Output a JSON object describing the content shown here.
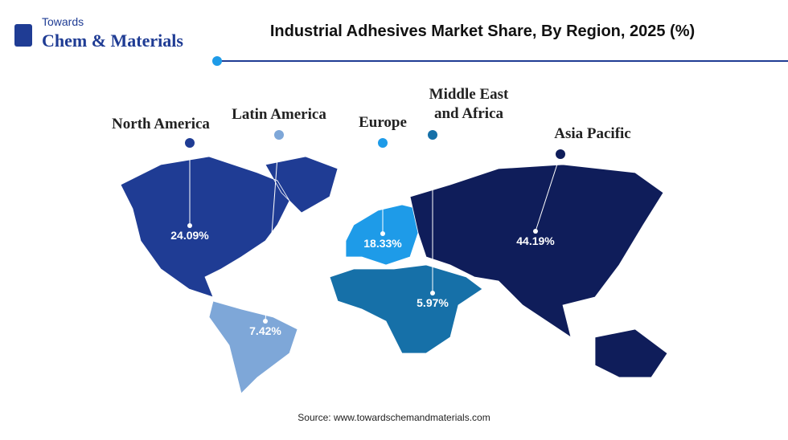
{
  "logo": {
    "line1": "Towards",
    "line2": "Chem & Materials"
  },
  "chart_data": {
    "type": "map",
    "title": "Industrial Adhesives Market Share, By Region, 2025 (%)",
    "source": "Source: www.towardschemandmaterials.com",
    "categories": [
      "North America",
      "Latin America",
      "Europe",
      "Middle East and Africa",
      "Asia Pacific"
    ],
    "values": [
      24.09,
      7.42,
      18.33,
      5.97,
      44.19
    ],
    "value_labels": [
      "24.09%",
      "7.42%",
      "18.33%",
      "5.97%",
      "44.19%"
    ],
    "colors": [
      "#1f3c94",
      "#7ea7d8",
      "#1e9be8",
      "#1670a8",
      "#0f1d5a"
    ]
  }
}
